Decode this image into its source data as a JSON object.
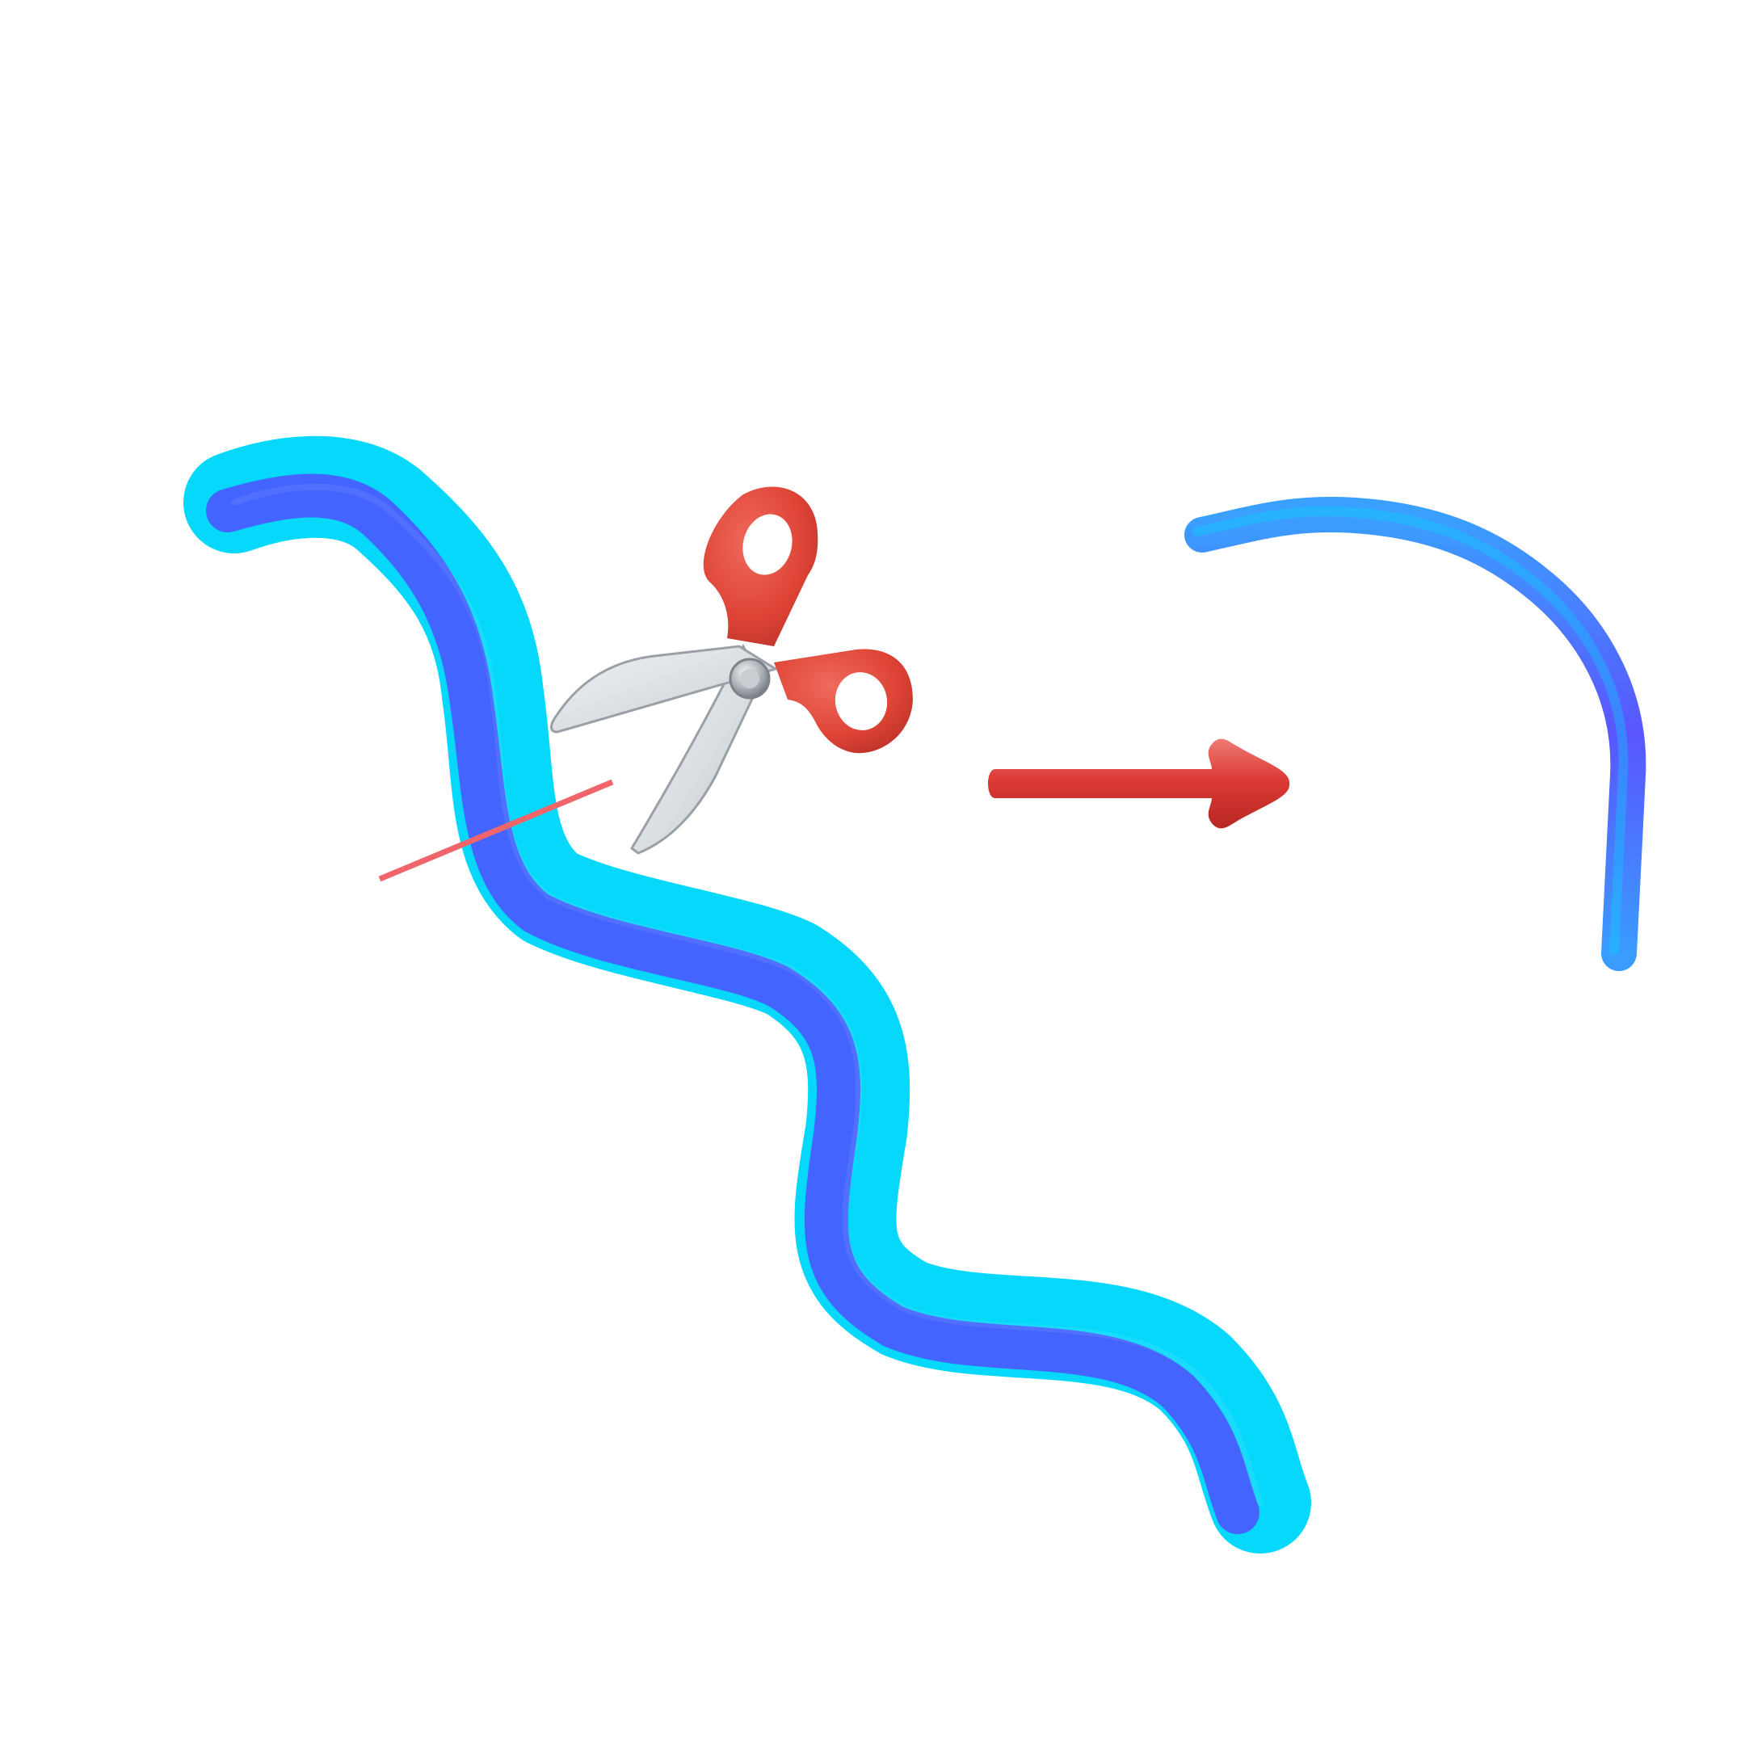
{
  "colors": {
    "background": "#ffffff",
    "stroke_cyan": "#06d8fb",
    "stroke_blue": "#5050ff",
    "cut_line": "#f0646a",
    "scissors_handle": "#e0453a",
    "scissors_handle_dark": "#c0302a",
    "scissors_blade": "#dde2e6",
    "scissors_blade_edge": "#9aa0a6",
    "arrow_red": "#dd3a36"
  },
  "icons": {
    "thick_stroke": "wavy-thick-stroke",
    "cut_line": "cut-line",
    "scissors": "scissors-icon",
    "arrow": "arrow-right-icon",
    "result_stroke": "thin-curved-stroke"
  }
}
